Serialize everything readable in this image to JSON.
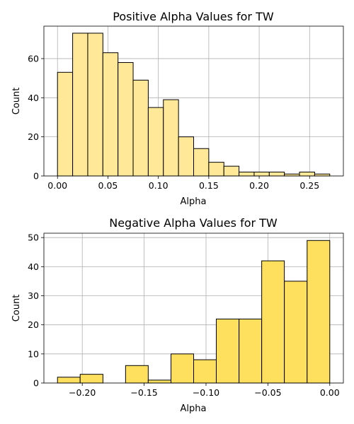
{
  "chart_data": [
    {
      "type": "bar",
      "title": "Positive Alpha Values for TW",
      "xlabel": "Alpha",
      "ylabel": "Count",
      "color": "#ffe999",
      "bin_edges": [
        0.0,
        0.015,
        0.03,
        0.045,
        0.06,
        0.075,
        0.09,
        0.105,
        0.12,
        0.135,
        0.15,
        0.165,
        0.18,
        0.195,
        0.21,
        0.225,
        0.24,
        0.255,
        0.27
      ],
      "values": [
        53,
        73,
        73,
        63,
        58,
        49,
        35,
        39,
        20,
        14,
        7,
        5,
        2,
        2,
        2,
        1,
        2,
        1
      ],
      "xlim": [
        -0.0135,
        0.2835
      ],
      "ylim": [
        0,
        76.6
      ],
      "xticks": [
        0.0,
        0.05,
        0.1,
        0.15,
        0.2,
        0.25
      ],
      "xtick_labels": [
        "0.00",
        "0.05",
        "0.10",
        "0.15",
        "0.20",
        "0.25"
      ],
      "yticks": [
        0,
        20,
        40,
        60
      ],
      "ytick_labels": [
        "0",
        "20",
        "40",
        "60"
      ],
      "grid": true
    },
    {
      "type": "bar",
      "title": "Negative Alpha Values for TW",
      "xlabel": "Alpha",
      "ylabel": "Count",
      "color": "#ffdf5e",
      "bin_edges": [
        -0.22,
        -0.2017,
        -0.1833,
        -0.165,
        -0.1467,
        -0.1283,
        -0.11,
        -0.0917,
        -0.0733,
        -0.055,
        -0.0367,
        -0.0183,
        0.0
      ],
      "values": [
        2,
        3,
        0,
        6,
        1,
        10,
        8,
        22,
        22,
        42,
        35,
        49
      ],
      "xlim": [
        -0.231,
        0.011
      ],
      "ylim": [
        0,
        51.5
      ],
      "xticks": [
        -0.2,
        -0.15,
        -0.1,
        -0.05,
        0.0
      ],
      "xtick_labels": [
        "−0.20",
        "−0.15",
        "−0.10",
        "−0.05",
        "0.00"
      ],
      "yticks": [
        0,
        10,
        20,
        30,
        40,
        50
      ],
      "ytick_labels": [
        "0",
        "10",
        "20",
        "30",
        "40",
        "50"
      ],
      "grid": true
    }
  ]
}
